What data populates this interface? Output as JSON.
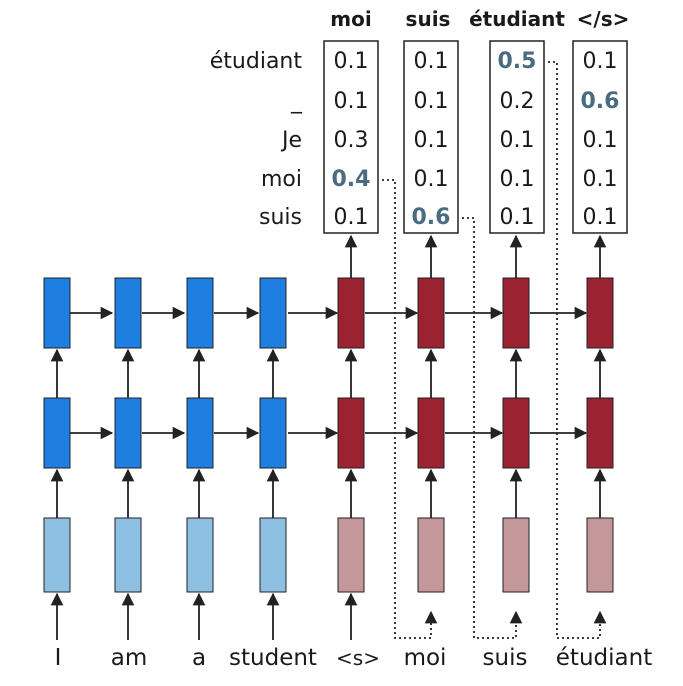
{
  "output_words": [
    "moi",
    "suis",
    "étudiant",
    "</s>"
  ],
  "vocabulary": [
    "étudiant",
    "_",
    "Je",
    "moi",
    "suis"
  ],
  "probabilities": [
    [
      "0.1",
      "0.1",
      "0.3",
      "0.4",
      "0.1"
    ],
    [
      "0.1",
      "0.1",
      "0.1",
      "0.1",
      "0.6"
    ],
    [
      "0.5",
      "0.2",
      "0.1",
      "0.1",
      "0.1"
    ],
    [
      "0.1",
      "0.6",
      "0.1",
      "0.1",
      "0.1"
    ]
  ],
  "highlighted_index": [
    3,
    4,
    0,
    1
  ],
  "encoder_inputs": [
    "I",
    "am",
    "a",
    "student"
  ],
  "decoder_inputs": [
    "<s>",
    "moi",
    "suis",
    "étudiant"
  ],
  "colors": {
    "encoder_hidden": "#1f7fe0",
    "encoder_embedding": "#8ec0e3",
    "decoder_hidden": "#9b2231",
    "decoder_embedding": "#c4979a",
    "highlight_text": "#4a6b80",
    "stroke": "#222222"
  }
}
